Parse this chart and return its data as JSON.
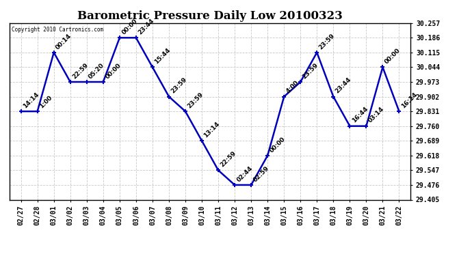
{
  "title": "Barometric Pressure Daily Low 20100323",
  "copyright": "Copyright 2010 Cartronics.com",
  "x_labels": [
    "02/27",
    "02/28",
    "03/01",
    "03/02",
    "03/03",
    "03/04",
    "03/05",
    "03/06",
    "03/07",
    "03/08",
    "03/09",
    "03/10",
    "03/11",
    "03/12",
    "03/13",
    "03/14",
    "03/15",
    "03/16",
    "03/17",
    "03/18",
    "03/19",
    "03/20",
    "03/21",
    "03/22"
  ],
  "y_values": [
    29.831,
    29.831,
    30.115,
    29.973,
    29.973,
    29.973,
    30.186,
    30.186,
    30.044,
    29.902,
    29.831,
    29.689,
    29.547,
    29.476,
    29.476,
    29.618,
    29.902,
    29.973,
    30.115,
    29.902,
    29.76,
    29.76,
    30.044,
    29.831
  ],
  "point_labels": [
    "14:14",
    "1:00",
    "00:14",
    "22:59",
    "05:20",
    "00:00",
    "00:00",
    "23:44",
    "15:44",
    "23:59",
    "23:59",
    "13:14",
    "22:59",
    "02:44",
    "02:59",
    "00:00",
    "4:00",
    "23:59",
    "23:59",
    "23:44",
    "16:44",
    "03:14",
    "00:00",
    "16:14"
  ],
  "y_min": 29.405,
  "y_max": 30.257,
  "y_ticks": [
    29.405,
    29.476,
    29.547,
    29.618,
    29.689,
    29.76,
    29.831,
    29.902,
    29.973,
    30.044,
    30.115,
    30.186,
    30.257
  ],
  "line_color": "#0000bb",
  "marker_color": "#0000bb",
  "bg_color": "#ffffff",
  "grid_color": "#c8c8c8",
  "title_fontsize": 12,
  "label_fontsize": 7,
  "annot_fontsize": 6.5
}
